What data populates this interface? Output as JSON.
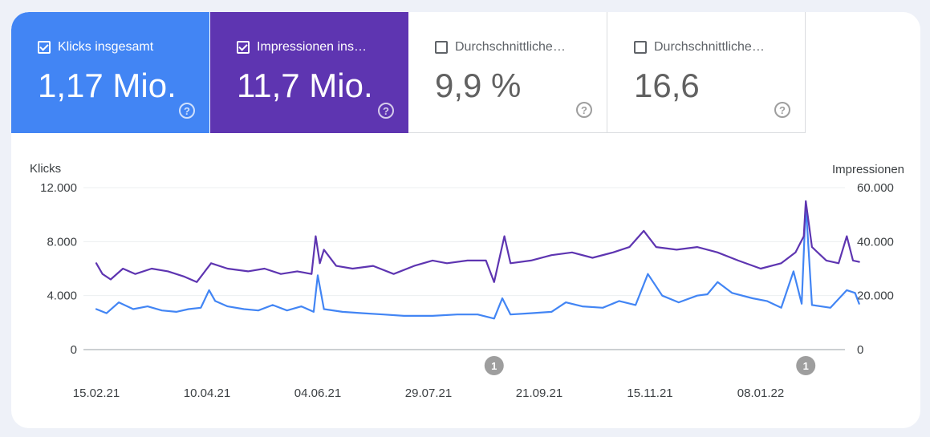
{
  "tiles": [
    {
      "label": "Klicks insgesamt",
      "value": "1,17 Mio.",
      "checked": true,
      "color": "#4285f4"
    },
    {
      "label": "Impressionen ins…",
      "value": "11,7 Mio.",
      "checked": true,
      "color": "#5e35b1"
    },
    {
      "label": "Durchschnittliche…",
      "value": "9,9 %",
      "checked": false
    },
    {
      "label": "Durchschnittliche…",
      "value": "16,6",
      "checked": false
    }
  ],
  "help_glyph": "?",
  "chart_data": {
    "type": "line",
    "left_axis_label": "Klicks",
    "right_axis_label": "Impressionen",
    "left_ticks": [
      "12.000",
      "8.000",
      "4.000",
      "0"
    ],
    "right_ticks": [
      "60.000",
      "40.000",
      "20.000",
      "0"
    ],
    "left_ylim": [
      0,
      12000
    ],
    "right_ylim": [
      0,
      60000
    ],
    "x_ticks": [
      "15.02.21",
      "10.04.21",
      "04.06.21",
      "29.07.21",
      "21.09.21",
      "15.11.21",
      "08.01.22"
    ],
    "x_range": [
      "2021-02-15",
      "2022-02-25"
    ],
    "grid": true,
    "series": [
      {
        "name": "Klicks",
        "axis": "left",
        "color": "#4285f4",
        "points": [
          [
            "2021-02-15",
            3000
          ],
          [
            "2021-02-20",
            2700
          ],
          [
            "2021-02-26",
            3500
          ],
          [
            "2021-03-05",
            3000
          ],
          [
            "2021-03-12",
            3200
          ],
          [
            "2021-03-19",
            2900
          ],
          [
            "2021-03-26",
            2800
          ],
          [
            "2021-04-01",
            3000
          ],
          [
            "2021-04-07",
            3100
          ],
          [
            "2021-04-11",
            4400
          ],
          [
            "2021-04-14",
            3600
          ],
          [
            "2021-04-20",
            3200
          ],
          [
            "2021-04-28",
            3000
          ],
          [
            "2021-05-05",
            2900
          ],
          [
            "2021-05-12",
            3300
          ],
          [
            "2021-05-19",
            2900
          ],
          [
            "2021-05-26",
            3200
          ],
          [
            "2021-06-01",
            2800
          ],
          [
            "2021-06-03",
            5500
          ],
          [
            "2021-06-06",
            3000
          ],
          [
            "2021-06-15",
            2800
          ],
          [
            "2021-06-25",
            2700
          ],
          [
            "2021-07-05",
            2600
          ],
          [
            "2021-07-15",
            2500
          ],
          [
            "2021-07-29",
            2500
          ],
          [
            "2021-08-10",
            2600
          ],
          [
            "2021-08-20",
            2600
          ],
          [
            "2021-08-28",
            2300
          ],
          [
            "2021-09-01",
            3800
          ],
          [
            "2021-09-05",
            2600
          ],
          [
            "2021-09-15",
            2700
          ],
          [
            "2021-09-25",
            2800
          ],
          [
            "2021-10-02",
            3500
          ],
          [
            "2021-10-10",
            3200
          ],
          [
            "2021-10-20",
            3100
          ],
          [
            "2021-10-28",
            3600
          ],
          [
            "2021-11-05",
            3300
          ],
          [
            "2021-11-11",
            5600
          ],
          [
            "2021-11-18",
            4000
          ],
          [
            "2021-11-26",
            3500
          ],
          [
            "2021-12-05",
            4000
          ],
          [
            "2021-12-10",
            4100
          ],
          [
            "2021-12-15",
            5000
          ],
          [
            "2021-12-22",
            4200
          ],
          [
            "2022-01-01",
            3800
          ],
          [
            "2022-01-08",
            3600
          ],
          [
            "2022-01-15",
            3100
          ],
          [
            "2022-01-21",
            5800
          ],
          [
            "2022-01-25",
            3400
          ],
          [
            "2022-01-27",
            10800
          ],
          [
            "2022-01-30",
            3300
          ],
          [
            "2022-02-08",
            3100
          ],
          [
            "2022-02-16",
            4400
          ],
          [
            "2022-02-20",
            4200
          ],
          [
            "2022-02-22",
            3400
          ]
        ]
      },
      {
        "name": "Impressionen",
        "axis": "right",
        "color": "#5e35b1",
        "points": [
          [
            "2021-02-15",
            32000
          ],
          [
            "2021-02-18",
            28000
          ],
          [
            "2021-02-22",
            26000
          ],
          [
            "2021-02-28",
            30000
          ],
          [
            "2021-03-06",
            28000
          ],
          [
            "2021-03-14",
            30000
          ],
          [
            "2021-03-22",
            29000
          ],
          [
            "2021-03-30",
            27000
          ],
          [
            "2021-04-05",
            25000
          ],
          [
            "2021-04-12",
            32000
          ],
          [
            "2021-04-20",
            30000
          ],
          [
            "2021-04-30",
            29000
          ],
          [
            "2021-05-08",
            30000
          ],
          [
            "2021-05-16",
            28000
          ],
          [
            "2021-05-24",
            29000
          ],
          [
            "2021-05-31",
            28000
          ],
          [
            "2021-06-02",
            42000
          ],
          [
            "2021-06-04",
            32000
          ],
          [
            "2021-06-06",
            37000
          ],
          [
            "2021-06-12",
            31000
          ],
          [
            "2021-06-20",
            30000
          ],
          [
            "2021-06-30",
            31000
          ],
          [
            "2021-07-10",
            28000
          ],
          [
            "2021-07-20",
            31000
          ],
          [
            "2021-07-29",
            33000
          ],
          [
            "2021-08-05",
            32000
          ],
          [
            "2021-08-15",
            33000
          ],
          [
            "2021-08-24",
            33000
          ],
          [
            "2021-08-28",
            25000
          ],
          [
            "2021-09-02",
            42000
          ],
          [
            "2021-09-05",
            32000
          ],
          [
            "2021-09-15",
            33000
          ],
          [
            "2021-09-25",
            35000
          ],
          [
            "2021-10-05",
            36000
          ],
          [
            "2021-10-15",
            34000
          ],
          [
            "2021-10-25",
            36000
          ],
          [
            "2021-11-02",
            38000
          ],
          [
            "2021-11-09",
            44000
          ],
          [
            "2021-11-15",
            38000
          ],
          [
            "2021-11-25",
            37000
          ],
          [
            "2021-12-05",
            38000
          ],
          [
            "2021-12-15",
            36000
          ],
          [
            "2021-12-25",
            33000
          ],
          [
            "2022-01-05",
            30000
          ],
          [
            "2022-01-15",
            32000
          ],
          [
            "2022-01-22",
            36000
          ],
          [
            "2022-01-26",
            42000
          ],
          [
            "2022-01-27",
            55000
          ],
          [
            "2022-01-30",
            38000
          ],
          [
            "2022-02-06",
            33000
          ],
          [
            "2022-02-12",
            32000
          ],
          [
            "2022-02-16",
            42000
          ],
          [
            "2022-02-19",
            33000
          ],
          [
            "2022-02-22",
            32500
          ]
        ]
      }
    ],
    "annotations": [
      {
        "date": "2021-08-28",
        "label": "1"
      },
      {
        "date": "2022-01-27",
        "label": "1"
      }
    ]
  }
}
